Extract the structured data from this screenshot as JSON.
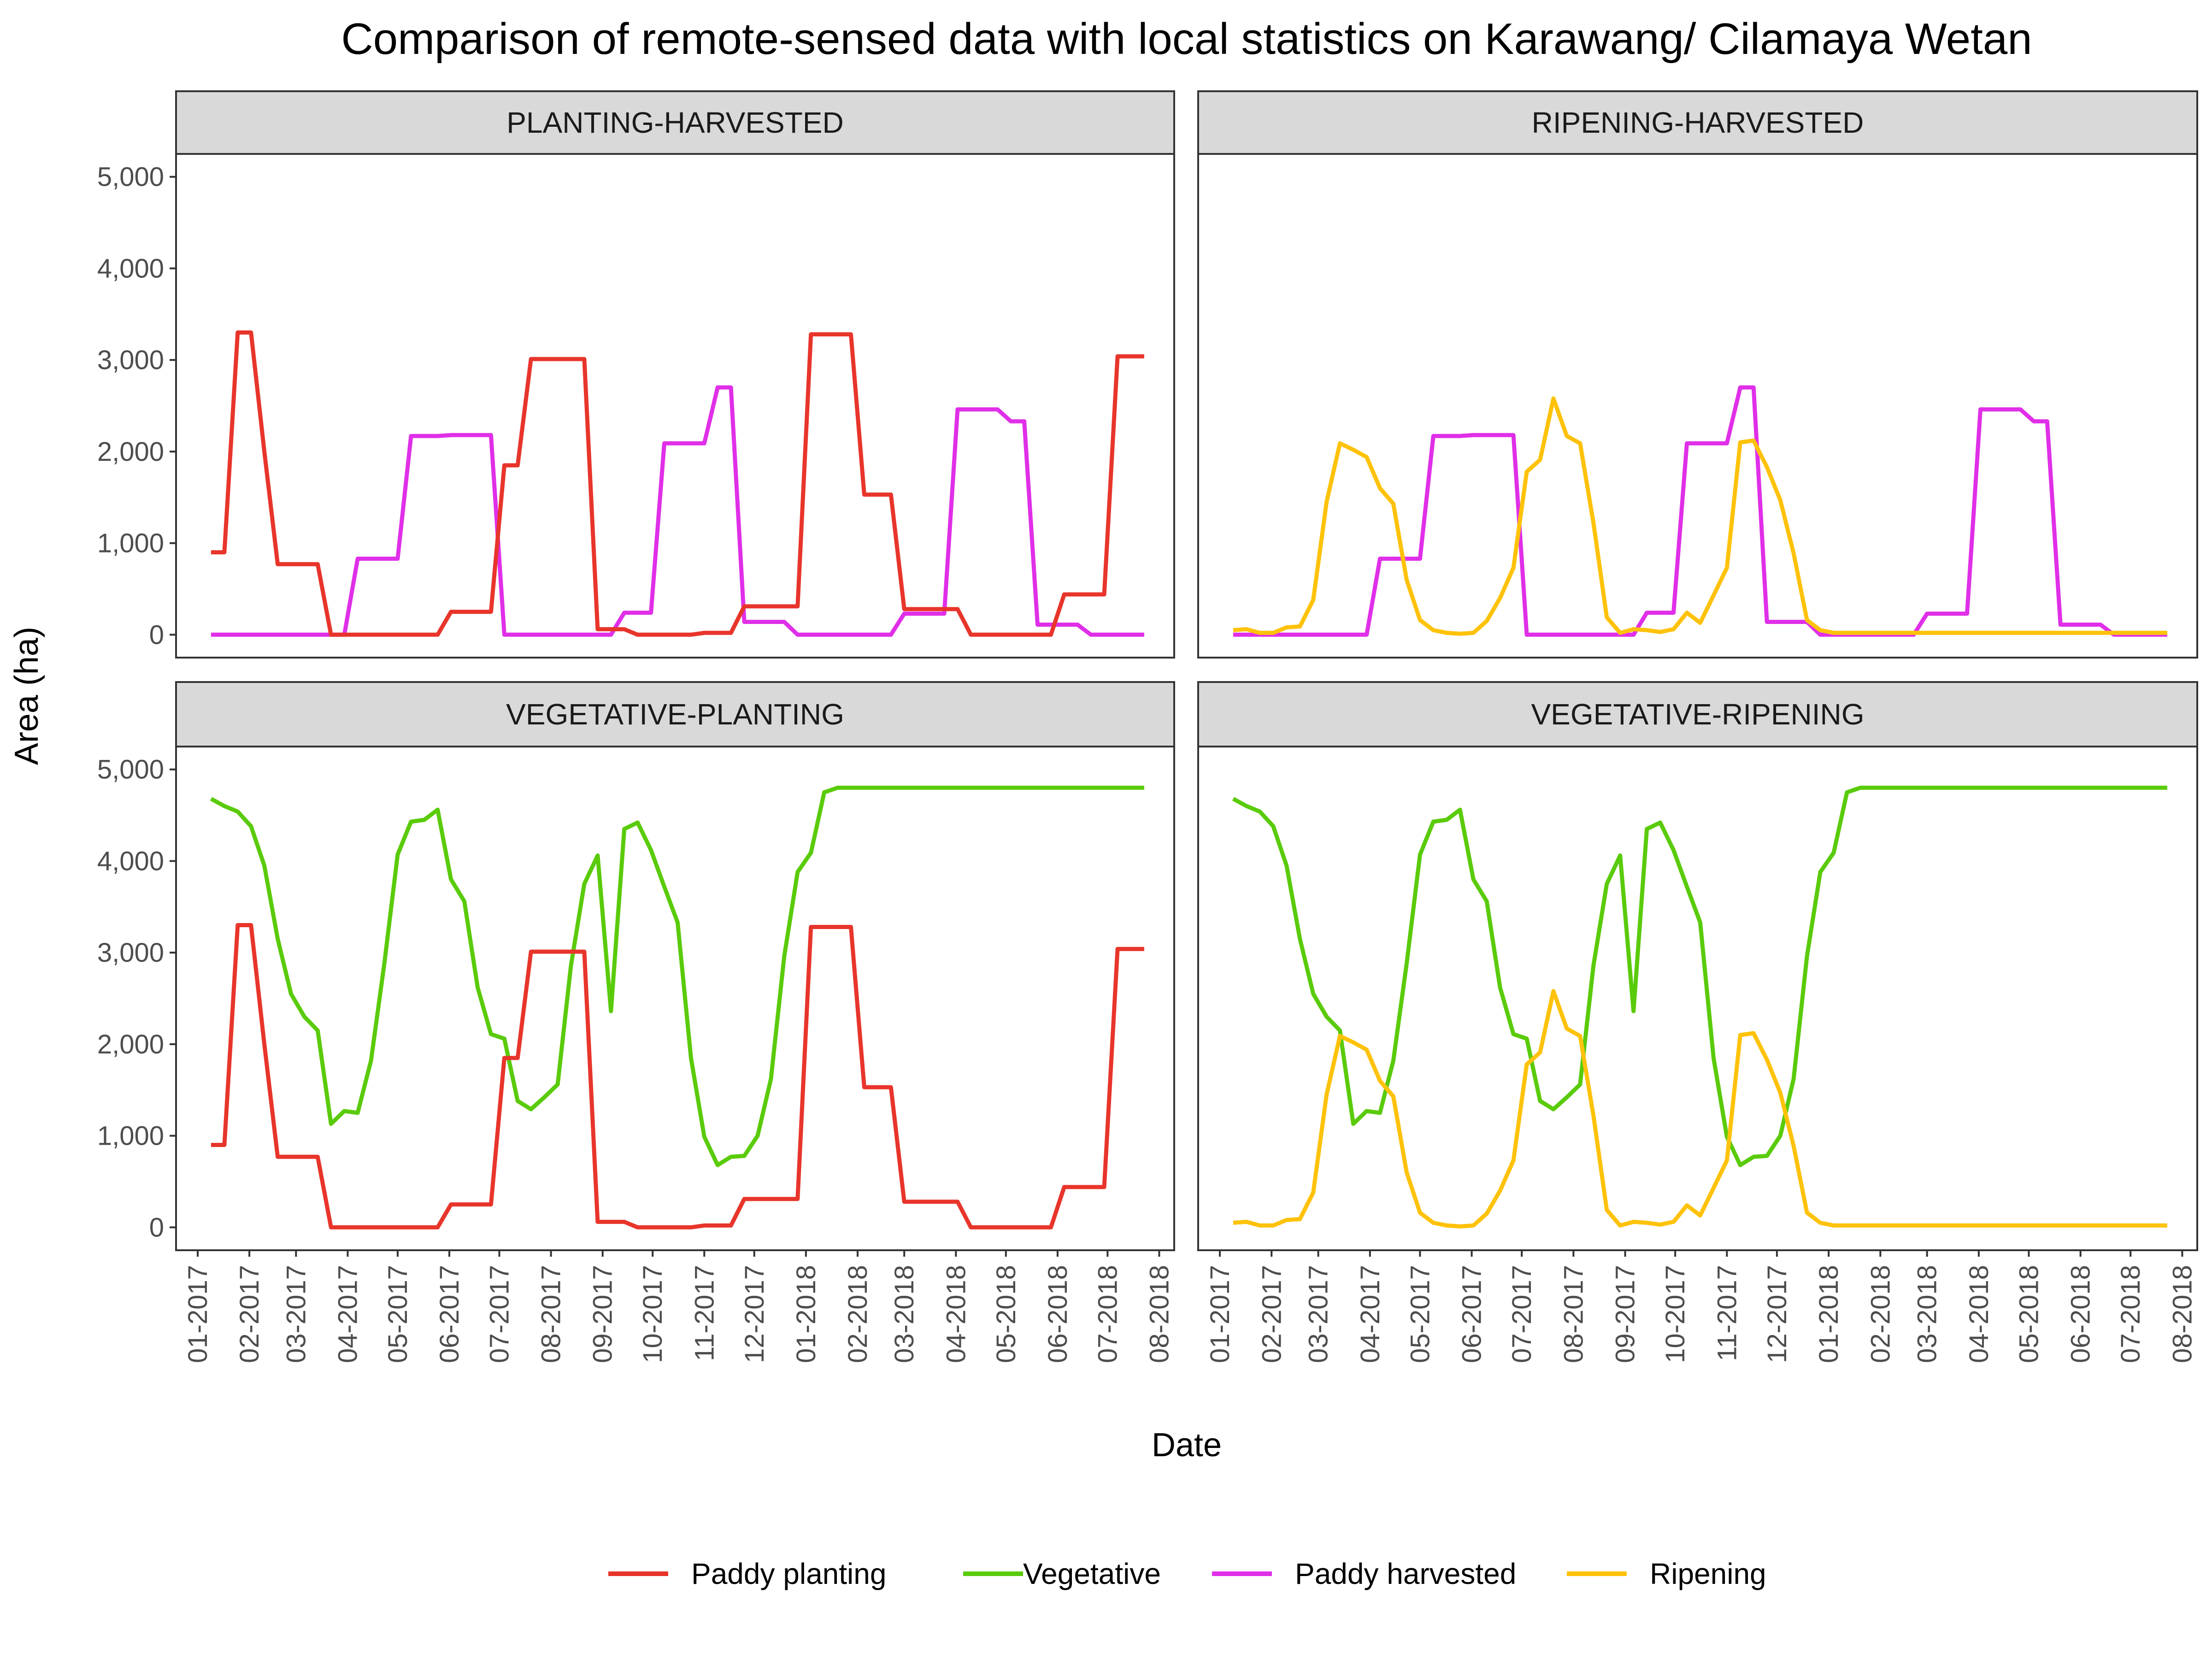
{
  "chart_data": {
    "type": "line",
    "title": "Comparison of remote-sensed data with local statistics on Karawang/ Cilamaya Wetan",
    "xlabel": "Date",
    "ylabel": "Area (ha)",
    "ylim": [
      0,
      5000
    ],
    "y_ticks": [
      0,
      1000,
      2000,
      3000,
      4000,
      5000
    ],
    "y_tick_labels": [
      "0",
      "1,000",
      "2,000",
      "3,000",
      "4,000",
      "5,000"
    ],
    "x_range": [
      "2016-12-19",
      "2018-08-10"
    ],
    "x_ticks": [
      "2017-01-01",
      "2017-02-01",
      "2017-03-01",
      "2017-04-01",
      "2017-05-01",
      "2017-06-01",
      "2017-07-01",
      "2017-08-01",
      "2017-09-01",
      "2017-10-01",
      "2017-11-01",
      "2017-12-01",
      "2018-01-01",
      "2018-02-01",
      "2018-03-01",
      "2018-04-01",
      "2018-05-01",
      "2018-06-01",
      "2018-07-01",
      "2018-08-01"
    ],
    "x_tick_labels": [
      "01-2017",
      "02-2017",
      "03-2017",
      "04-2017",
      "05-2017",
      "06-2017",
      "07-2017",
      "08-2017",
      "09-2017",
      "10-2017",
      "11-2017",
      "12-2017",
      "01-2018",
      "02-2018",
      "03-2018",
      "04-2018",
      "05-2018",
      "06-2018",
      "07-2018",
      "08-2018"
    ],
    "grid": false,
    "legend_position": "bottom",
    "legend": [
      {
        "name": "Paddy planting",
        "color": "#e8352b"
      },
      {
        "name": "Vegetative",
        "color": "#5acb0b"
      },
      {
        "name": "Paddy harvested",
        "color": "#e02fe8"
      },
      {
        "name": "Ripening",
        "color": "#fec20b"
      }
    ],
    "dates": [
      "2017-01-09",
      "2017-01-17",
      "2017-01-25",
      "2017-02-02",
      "2017-02-10",
      "2017-02-18",
      "2017-02-26",
      "2017-03-06",
      "2017-03-14",
      "2017-03-22",
      "2017-03-30",
      "2017-04-07",
      "2017-04-15",
      "2017-04-23",
      "2017-05-01",
      "2017-05-09",
      "2017-05-17",
      "2017-05-25",
      "2017-06-02",
      "2017-06-10",
      "2017-06-18",
      "2017-06-26",
      "2017-07-04",
      "2017-07-12",
      "2017-07-20",
      "2017-07-28",
      "2017-08-05",
      "2017-08-13",
      "2017-08-21",
      "2017-08-29",
      "2017-09-06",
      "2017-09-14",
      "2017-09-22",
      "2017-09-30",
      "2017-10-08",
      "2017-10-16",
      "2017-10-24",
      "2017-11-01",
      "2017-11-09",
      "2017-11-17",
      "2017-11-25",
      "2017-12-03",
      "2017-12-11",
      "2017-12-19",
      "2017-12-27",
      "2018-01-04",
      "2018-01-12",
      "2018-01-20",
      "2018-01-28",
      "2018-02-05",
      "2018-02-13",
      "2018-02-21",
      "2018-03-01",
      "2018-03-09",
      "2018-03-17",
      "2018-03-25",
      "2018-04-02",
      "2018-04-10",
      "2018-04-18",
      "2018-04-26",
      "2018-05-04",
      "2018-05-12",
      "2018-05-20",
      "2018-05-28",
      "2018-06-05",
      "2018-06-13",
      "2018-06-21",
      "2018-06-29",
      "2018-07-07",
      "2018-07-15",
      "2018-07-23"
    ],
    "panels": [
      {
        "strip": "PLANTING-HARVESTED",
        "series": [
          "Paddy harvested",
          "Paddy planting"
        ]
      },
      {
        "strip": "RIPENING-HARVESTED",
        "series": [
          "Paddy harvested",
          "Ripening"
        ]
      },
      {
        "strip": "VEGETATIVE-PLANTING",
        "series": [
          "Vegetative",
          "Paddy planting"
        ]
      },
      {
        "strip": "VEGETATIVE-RIPENING",
        "series": [
          "Vegetative",
          "Ripening"
        ]
      }
    ],
    "series": [
      {
        "name": "Paddy planting",
        "color": "#e8352b",
        "values": [
          900,
          900,
          3300,
          3300,
          2000,
          770,
          770,
          770,
          770,
          0,
          0,
          0,
          0,
          0,
          0,
          0,
          0,
          0,
          250,
          250,
          250,
          250,
          1850,
          1850,
          3010,
          3010,
          3010,
          3010,
          3010,
          60,
          60,
          60,
          0,
          0,
          0,
          0,
          0,
          20,
          20,
          20,
          310,
          310,
          310,
          310,
          310,
          3280,
          3280,
          3280,
          3280,
          1530,
          1530,
          1530,
          280,
          280,
          280,
          280,
          280,
          0,
          0,
          0,
          0,
          0,
          0,
          0,
          440,
          440,
          440,
          440,
          3040,
          3040,
          3040
        ]
      },
      {
        "name": "Vegetative",
        "color": "#5acb0b",
        "values": [
          4680,
          4600,
          4540,
          4380,
          3950,
          3150,
          2550,
          2300,
          2150,
          1130,
          1270,
          1250,
          1820,
          2880,
          4070,
          4430,
          4450,
          4560,
          3800,
          3560,
          2620,
          2110,
          2060,
          1380,
          1290,
          1420,
          1560,
          2860,
          3750,
          4060,
          2360,
          4350,
          4420,
          4120,
          3720,
          3330,
          1850,
          990,
          680,
          770,
          780,
          1000,
          1620,
          2960,
          3880,
          4090,
          4750,
          4800,
          4800,
          4800,
          4800,
          4800,
          4800,
          4800,
          4800,
          4800,
          4800,
          4800,
          4800,
          4800,
          4800,
          4800,
          4800,
          4800,
          4800,
          4800,
          4800,
          4800,
          4800,
          4800,
          4800
        ]
      },
      {
        "name": "Paddy harvested",
        "color": "#e02fe8",
        "values": [
          0,
          0,
          0,
          0,
          0,
          0,
          0,
          0,
          0,
          0,
          0,
          830,
          830,
          830,
          830,
          2170,
          2170,
          2170,
          2180,
          2180,
          2180,
          2180,
          0,
          0,
          0,
          0,
          0,
          0,
          0,
          0,
          0,
          240,
          240,
          240,
          2090,
          2090,
          2090,
          2090,
          2700,
          2700,
          140,
          140,
          140,
          140,
          0,
          0,
          0,
          0,
          0,
          0,
          0,
          0,
          230,
          230,
          230,
          230,
          2460,
          2460,
          2460,
          2460,
          2330,
          2330,
          110,
          110,
          110,
          110,
          0,
          0,
          0,
          0,
          0
        ]
      },
      {
        "name": "Ripening",
        "color": "#fec20b",
        "values": [
          50,
          60,
          20,
          20,
          80,
          90,
          380,
          1450,
          2090,
          2020,
          1940,
          1600,
          1430,
          600,
          160,
          50,
          20,
          10,
          20,
          150,
          400,
          730,
          1780,
          1910,
          2580,
          2170,
          2090,
          1220,
          190,
          20,
          60,
          50,
          30,
          60,
          240,
          130,
          430,
          730,
          2100,
          2120,
          1830,
          1470,
          890,
          160,
          50,
          20,
          20,
          20,
          20,
          20,
          20,
          20,
          20,
          20,
          20,
          20,
          20,
          20,
          20,
          20,
          20,
          20,
          20,
          20,
          20,
          20,
          20,
          20,
          20,
          20,
          20
        ]
      }
    ]
  }
}
